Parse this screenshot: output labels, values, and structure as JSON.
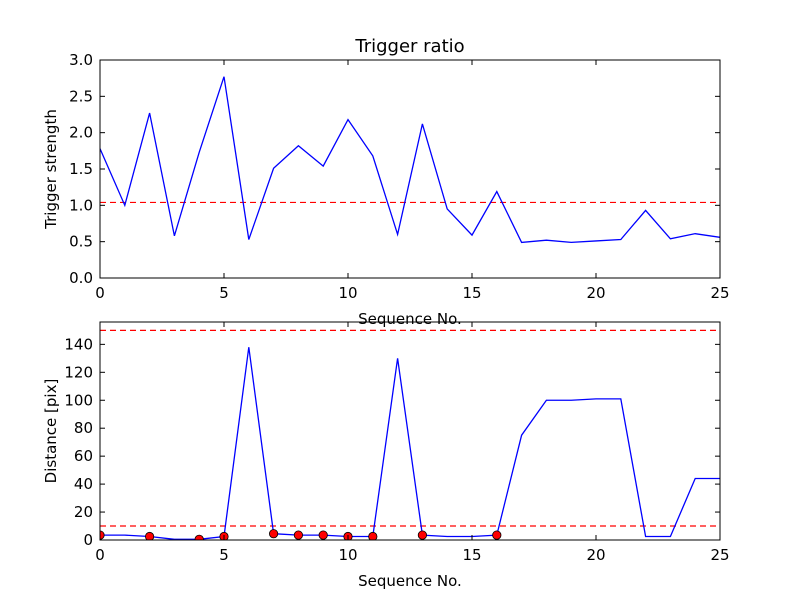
{
  "chart_data": [
    {
      "type": "line",
      "title": "Trigger ratio",
      "xlabel": "Sequence No.",
      "ylabel": "Trigger strength",
      "xlim": [
        0,
        25
      ],
      "ylim": [
        0,
        3.0
      ],
      "xticks": [
        0,
        5,
        10,
        15,
        20,
        25
      ],
      "xtick_labels": [
        "0",
        "5",
        "10",
        "15",
        "20",
        "25"
      ],
      "yticks": [
        0,
        0.5,
        1.0,
        1.5,
        2.0,
        2.5,
        3.0
      ],
      "ytick_labels": [
        "0.0",
        "0.5",
        "1.0",
        "1.5",
        "2.0",
        "2.5",
        "3.0"
      ],
      "grid": false,
      "series": [
        {
          "color": "#0000ff",
          "style": "solid",
          "x": [
            0,
            1,
            2,
            3,
            4,
            5,
            6,
            7,
            8,
            9,
            10,
            11,
            12,
            13,
            14,
            15,
            16,
            17,
            18,
            19,
            20,
            21,
            22,
            23,
            24,
            25
          ],
          "y": [
            1.78,
            1.0,
            2.27,
            0.58,
            1.73,
            2.77,
            0.53,
            1.51,
            1.82,
            1.54,
            2.18,
            1.68,
            0.6,
            2.12,
            0.95,
            0.59,
            1.19,
            0.49,
            0.52,
            0.49,
            0.51,
            0.53,
            0.93,
            0.54,
            0.61,
            0.56
          ]
        }
      ],
      "hlines": [
        {
          "y": 1.04,
          "color": "#ff0000",
          "style": "dashed"
        }
      ]
    },
    {
      "type": "line",
      "title": "",
      "xlabel": "Sequence No.",
      "ylabel": "Distance [pix]",
      "xlim": [
        0,
        25
      ],
      "ylim": [
        0,
        156
      ],
      "xticks": [
        0,
        5,
        10,
        15,
        20,
        25
      ],
      "xtick_labels": [
        "0",
        "5",
        "10",
        "15",
        "20",
        "25"
      ],
      "yticks": [
        0,
        20,
        40,
        60,
        80,
        100,
        120,
        140
      ],
      "ytick_labels": [
        "0",
        "20",
        "40",
        "60",
        "80",
        "100",
        "120",
        "140"
      ],
      "grid": false,
      "series": [
        {
          "color": "#0000ff",
          "style": "solid",
          "x": [
            0,
            1,
            2,
            3,
            4,
            5,
            6,
            7,
            8,
            9,
            10,
            11,
            12,
            13,
            14,
            15,
            16,
            17,
            18,
            19,
            20,
            21,
            22,
            23,
            24,
            25
          ],
          "y": [
            3.5,
            3.5,
            2.5,
            0.5,
            0.5,
            2.5,
            138,
            4.5,
            3.5,
            3.5,
            2.5,
            2.5,
            130,
            3.5,
            2.5,
            2.5,
            3.5,
            75,
            100,
            100,
            101,
            101,
            2.5,
            2.5,
            44,
            44
          ]
        },
        {
          "color": "#ff0000",
          "style": "markers",
          "x": [
            0,
            2,
            4,
            5,
            7,
            8,
            9,
            10,
            11,
            13,
            16
          ],
          "y": [
            3.5,
            2.5,
            0.5,
            2.5,
            4.5,
            3.5,
            3.5,
            2.5,
            2.5,
            3.5,
            3.5
          ]
        }
      ],
      "hlines": [
        {
          "y": 150,
          "color": "#ff0000",
          "style": "dashed"
        },
        {
          "y": 10,
          "color": "#ff0000",
          "style": "dashed"
        }
      ]
    }
  ]
}
